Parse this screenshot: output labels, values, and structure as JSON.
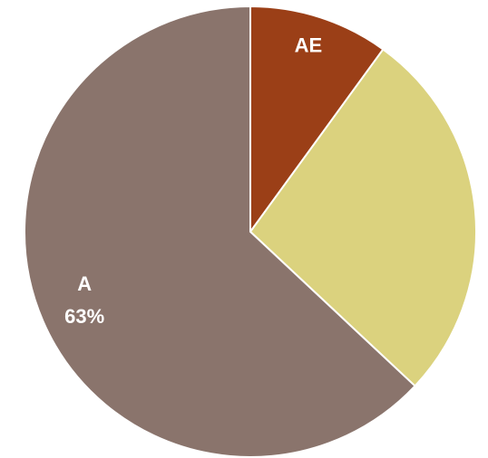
{
  "chart_data": {
    "type": "pie",
    "categories": [
      "AE",
      null,
      "A"
    ],
    "values": [
      10,
      27,
      63
    ],
    "value_labels": [
      null,
      null,
      "63%"
    ],
    "colors": [
      "#9b3f17",
      "#dbd27e",
      "#8a746c"
    ],
    "start_angle": 0,
    "direction": "clockwise"
  }
}
